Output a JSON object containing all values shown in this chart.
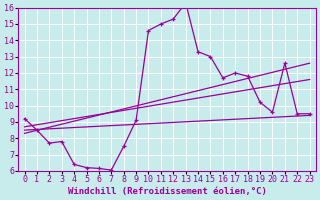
{
  "xlabel": "Windchill (Refroidissement éolien,°C)",
  "bg_color": "#c8ecec",
  "grid_color": "#ffffff",
  "line_color": "#990099",
  "xlim": [
    -0.5,
    23.5
  ],
  "ylim": [
    6,
    16
  ],
  "yticks": [
    6,
    7,
    8,
    9,
    10,
    11,
    12,
    13,
    14,
    15,
    16
  ],
  "xticks": [
    0,
    1,
    2,
    3,
    4,
    5,
    6,
    7,
    8,
    9,
    10,
    11,
    12,
    13,
    14,
    15,
    16,
    17,
    18,
    19,
    20,
    21,
    22,
    23
  ],
  "curve1_x": [
    0,
    1,
    2,
    3,
    4,
    5,
    6,
    7,
    8,
    9,
    10,
    11,
    12,
    13,
    14,
    15,
    16,
    17,
    18,
    19,
    20,
    21,
    22,
    23
  ],
  "curve1_y": [
    9.2,
    8.5,
    7.7,
    7.8,
    6.4,
    6.2,
    6.15,
    6.05,
    7.5,
    9.1,
    14.6,
    15.0,
    15.3,
    16.3,
    13.3,
    13.0,
    11.7,
    12.0,
    11.8,
    10.2,
    9.6,
    12.6,
    9.5,
    9.5
  ],
  "curve2_x": [
    0,
    23
  ],
  "curve2_y": [
    8.3,
    12.6
  ],
  "curve3_x": [
    0,
    23
  ],
  "curve3_y": [
    8.7,
    11.6
  ],
  "curve4_x": [
    0,
    23
  ],
  "curve4_y": [
    8.5,
    9.4
  ],
  "tick_fontsize": 6,
  "label_fontsize": 6.5
}
